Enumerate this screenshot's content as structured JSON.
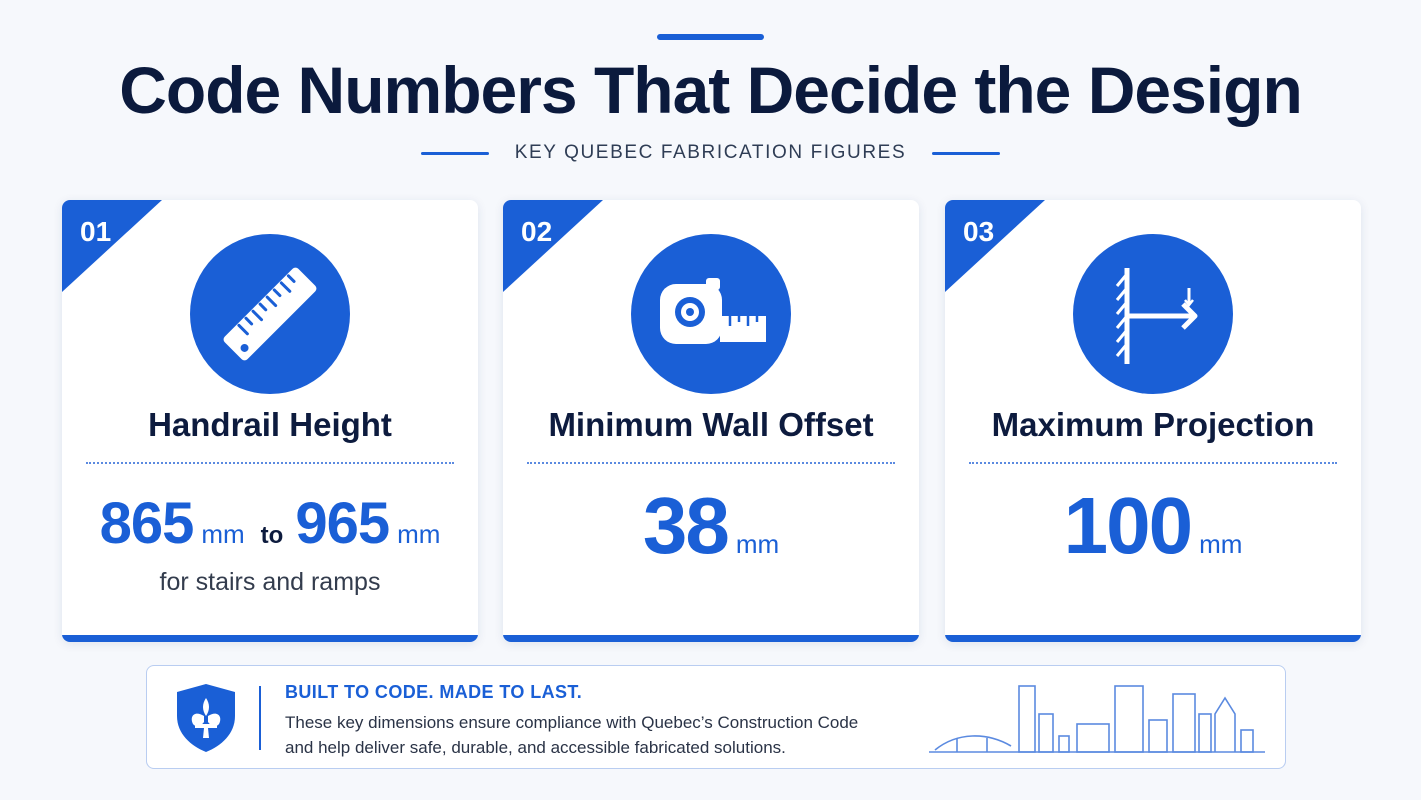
{
  "header": {
    "title": "Code Numbers That Decide the Design",
    "subtitle": "KEY QUEBEC FABRICATION FIGURES"
  },
  "cards": [
    {
      "number": "01",
      "icon": "ruler-icon",
      "title": "Handrail Height",
      "value_min": "865",
      "unit_min": "mm",
      "connector": "to",
      "value_max": "965",
      "unit_max": "mm",
      "note": "for stairs and ramps"
    },
    {
      "number": "02",
      "icon": "tape-measure-icon",
      "title": "Minimum Wall Offset",
      "value": "38",
      "unit": "mm"
    },
    {
      "number": "03",
      "icon": "wall-projection-icon",
      "title": "Maximum Projection",
      "value": "100",
      "unit": "mm"
    }
  ],
  "banner": {
    "icon": "fleur-de-lis-shield-icon",
    "heading": "BUILT TO CODE.  MADE TO LAST.",
    "body_line1": "These key dimensions ensure compliance with Quebec’s Construction Code",
    "body_line2": "and help deliver safe, durable, and accessible fabricated solutions.",
    "illustration": "city-skyline-icon"
  },
  "colors": {
    "accent": "#1a5fd6",
    "title": "#0b1a3d",
    "background": "#f6f8fc"
  }
}
